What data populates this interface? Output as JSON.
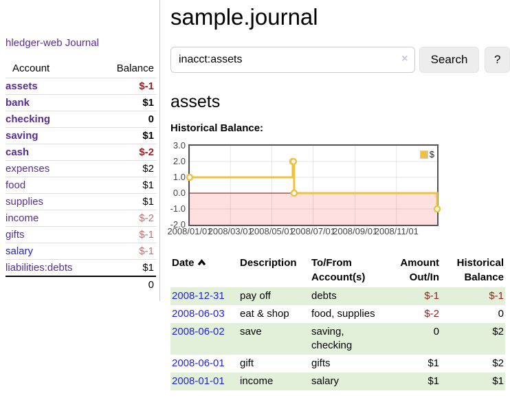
{
  "brand": "hledger-web",
  "nav": {
    "journal": "Journal"
  },
  "sidebar": {
    "col_account": "Account",
    "col_balance": "Balance",
    "accounts": [
      {
        "name": "assets",
        "indent": 1,
        "bold": true,
        "color": "purple",
        "balance": "$-1",
        "balance_class": "neg"
      },
      {
        "name": "bank",
        "indent": 2,
        "bold": true,
        "color": "purple",
        "balance": "$1",
        "balance_class": ""
      },
      {
        "name": "checking",
        "indent": 3,
        "bold": true,
        "color": "purple",
        "balance": "0",
        "balance_class": ""
      },
      {
        "name": "saving",
        "indent": 3,
        "bold": true,
        "color": "purple",
        "balance": "$1",
        "balance_class": ""
      },
      {
        "name": "cash",
        "indent": 2,
        "bold": true,
        "color": "purple",
        "balance": "$-2",
        "balance_class": "neg"
      },
      {
        "name": "expenses",
        "indent": 1,
        "bold": false,
        "color": "purple",
        "balance": "$2",
        "balance_class": ""
      },
      {
        "name": "food",
        "indent": 2,
        "bold": false,
        "color": "purple",
        "balance": "$1",
        "balance_class": ""
      },
      {
        "name": "supplies",
        "indent": 2,
        "bold": false,
        "color": "purple",
        "balance": "$1",
        "balance_class": ""
      },
      {
        "name": "income",
        "indent": 1,
        "bold": false,
        "color": "purple",
        "balance": "$-2",
        "balance_class": "neg-soft"
      },
      {
        "name": "gifts",
        "indent": 2,
        "bold": false,
        "color": "purple",
        "balance": "$-1",
        "balance_class": "neg-soft"
      },
      {
        "name": "salary",
        "indent": 2,
        "bold": false,
        "color": "blue",
        "balance": "$-1",
        "balance_class": "neg-soft"
      },
      {
        "name": "liabilities:debts",
        "indent": 1,
        "bold": false,
        "color": "purple",
        "balance": "$1",
        "balance_class": ""
      }
    ],
    "total": "0"
  },
  "page": {
    "title": "sample.journal",
    "account_heading": "assets",
    "chart_label": "Historical Balance:"
  },
  "search": {
    "value": "inacct:assets",
    "clear": "×",
    "button": "Search",
    "help": "?"
  },
  "chart_data": {
    "type": "line",
    "step": true,
    "title": "Historical Balance",
    "series": [
      {
        "name": "$",
        "color": "#edc240",
        "points": [
          [
            "2008-01-01",
            1.0
          ],
          [
            "2008-06-01",
            2.0
          ],
          [
            "2008-06-02",
            2.0
          ],
          [
            "2008-06-03",
            0.0
          ],
          [
            "2008-12-31",
            -1.0
          ]
        ]
      }
    ],
    "x_range": [
      "2008-01-01",
      "2008-12-31"
    ],
    "x_ticks": [
      "2008/01/01",
      "2008/03/01",
      "2008/05/01",
      "2008/07/01",
      "2008/09/01",
      "2008/11/01"
    ],
    "y_ticks": [
      "3.0",
      "2.0",
      "1.0",
      "0.0",
      "-1.0",
      "-2.0"
    ],
    "y_range": [
      -2,
      3
    ],
    "grid": true,
    "legend_position": "top-right",
    "zero_line_color": "#8b0000",
    "negative_region_color": "rgba(255,0,0,0.12)",
    "grid_color": "rgba(0,0,0,0.10)"
  },
  "register": {
    "headers": {
      "date": "Date",
      "description": "Description",
      "accounts": "To/From Account(s)",
      "amount": "Amount Out/In",
      "balance": "Historical Balance"
    },
    "rows": [
      {
        "date": "2008-12-31",
        "description": "pay off",
        "accounts": "debts",
        "amount": "$-1",
        "amount_class": "neg",
        "balance": "$-1",
        "balance_class": "neg",
        "green": true
      },
      {
        "date": "2008-06-03",
        "description": "eat & shop",
        "accounts": "food, supplies",
        "amount": "$-2",
        "amount_class": "neg",
        "balance": "0",
        "balance_class": "",
        "green": false
      },
      {
        "date": "2008-06-02",
        "description": "save",
        "accounts": "saving, checking",
        "amount": "0",
        "amount_class": "",
        "balance": "$2",
        "balance_class": "",
        "green": true
      },
      {
        "date": "2008-06-01",
        "description": "gift",
        "accounts": "gifts",
        "amount": "$1",
        "amount_class": "",
        "balance": "$2",
        "balance_class": "",
        "green": false
      },
      {
        "date": "2008-01-01",
        "description": "income",
        "accounts": "salary",
        "amount": "$1",
        "amount_class": "",
        "balance": "$1",
        "balance_class": "",
        "green": true
      }
    ]
  },
  "colors": {
    "accent_purple": "#572e94",
    "link_blue": "#2222dd",
    "negative_strong": "#992121",
    "negative_soft": "#bb7272",
    "row_green": "#e2f0da",
    "chart_line": "#edc240"
  }
}
